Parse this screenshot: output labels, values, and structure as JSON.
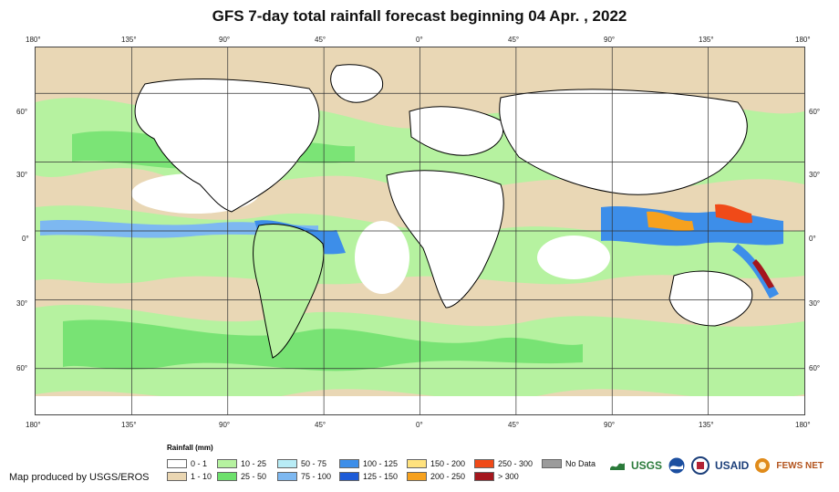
{
  "title": "GFS 7-day total rainfall forecast beginning 04 Apr. , 2022",
  "axes": {
    "longitude_labels": [
      "180°",
      "135°",
      "90°",
      "45°",
      "0°",
      "45°",
      "90°",
      "135°",
      "180°"
    ],
    "latitude_labels": [
      "60°",
      "30°",
      "0°",
      "30°",
      "60°"
    ]
  },
  "legend": {
    "title": "Rainfall (mm)",
    "items": [
      {
        "label": "0 - 1",
        "color": "#ffffff"
      },
      {
        "label": "1 - 10",
        "color": "#ead6b2"
      },
      {
        "label": "10 - 25",
        "color": "#b6f2a0"
      },
      {
        "label": "25 - 50",
        "color": "#6de06c"
      },
      {
        "label": "50 - 75",
        "color": "#b8ecf6"
      },
      {
        "label": "75 - 100",
        "color": "#7db8f1"
      },
      {
        "label": "100 - 125",
        "color": "#3d8ee9"
      },
      {
        "label": "125 - 150",
        "color": "#1e5bd7"
      },
      {
        "label": "150 - 200",
        "color": "#ffe27e"
      },
      {
        "label": "200 - 250",
        "color": "#f6a11e"
      },
      {
        "label": "250 - 300",
        "color": "#f04a18"
      },
      {
        "label": "> 300",
        "color": "#a4161d"
      },
      {
        "label": "No Data",
        "color": "#9b9b9b"
      }
    ]
  },
  "credit": "Map produced by USGS/EROS",
  "logos": {
    "usgs": "USGS",
    "usaid": "USAID",
    "fewsnet": "FEWS NET",
    "noaa_icon": "noaa-logo-icon",
    "usgs_icon": "usgs-logo-icon"
  },
  "map_data": {
    "projection": "equirectangular",
    "lon_range": [
      -180,
      180
    ],
    "lat_range": [
      -80,
      80
    ],
    "graticule_lon": [
      -135,
      -90,
      -45,
      0,
      45,
      90,
      135
    ],
    "graticule_lat": [
      -60,
      -30,
      0,
      30,
      60
    ]
  }
}
